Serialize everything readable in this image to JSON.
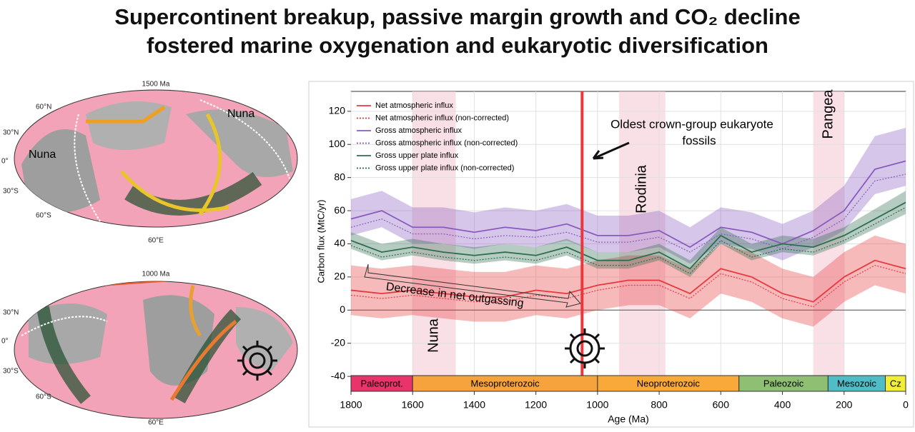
{
  "title_lines": [
    "Supercontinent breakup, passive margin growth and CO₂ decline",
    "fostered marine oxygenation and eukaryotic diversification"
  ],
  "maps": [
    {
      "title": "1500 Ma",
      "lat_labels": [
        "60°N",
        "30°N",
        "0°",
        "30°S",
        "60°S"
      ],
      "lon_label": "60°E",
      "regions": [
        "Nuna",
        "Nuna"
      ]
    },
    {
      "title": "1000 Ma",
      "lat_labels": [
        "30°N",
        "0°",
        "30°S",
        "60°S"
      ],
      "lon_label": "60°E"
    }
  ],
  "chart_data": {
    "type": "line",
    "x_label": "Age (Ma)",
    "y_label": "Carbon flux (MtC/yr)",
    "x": [
      1800,
      1700,
      1600,
      1500,
      1400,
      1300,
      1200,
      1100,
      1000,
      900,
      800,
      700,
      600,
      500,
      400,
      300,
      200,
      100,
      0
    ],
    "xlim": [
      1800,
      0
    ],
    "ylim": [
      -49,
      132
    ],
    "xticks": [
      1800,
      1600,
      1400,
      1200,
      1000,
      800,
      600,
      400,
      200,
      0
    ],
    "yticks": [
      -40,
      -20,
      0,
      20,
      40,
      60,
      80,
      100,
      120
    ],
    "grid": true,
    "legend": "upper left",
    "series": [
      {
        "name": "Net atmospheric influx",
        "color": "#e8383d",
        "dashed": false,
        "values": [
          12,
          10,
          12,
          10,
          8,
          8,
          12,
          10,
          15,
          18,
          18,
          10,
          25,
          20,
          10,
          5,
          20,
          30,
          25
        ],
        "lower": [
          -3,
          -5,
          -3,
          -5,
          -7,
          -7,
          -3,
          -5,
          0,
          3,
          3,
          -5,
          10,
          5,
          -5,
          -10,
          5,
          15,
          10
        ],
        "upper": [
          27,
          25,
          27,
          25,
          23,
          23,
          27,
          25,
          30,
          33,
          33,
          25,
          40,
          35,
          25,
          20,
          35,
          45,
          40
        ]
      },
      {
        "name": "Net atmospheric influx (non-corrected)",
        "color": "#e8383d",
        "dashed": true,
        "values": [
          9,
          7,
          9,
          7,
          5,
          5,
          9,
          7,
          12,
          15,
          15,
          7,
          22,
          17,
          7,
          2,
          17,
          27,
          22
        ]
      },
      {
        "name": "Gross atmospheric influx",
        "color": "#8a5bbf",
        "dashed": false,
        "values": [
          55,
          60,
          50,
          50,
          47,
          50,
          48,
          52,
          45,
          45,
          48,
          38,
          50,
          47,
          40,
          48,
          60,
          85,
          90
        ],
        "lower": [
          45,
          50,
          40,
          40,
          37,
          40,
          38,
          42,
          35,
          35,
          38,
          28,
          40,
          37,
          30,
          38,
          48,
          70,
          75
        ],
        "upper": [
          67,
          72,
          62,
          62,
          59,
          62,
          60,
          64,
          57,
          57,
          60,
          50,
          62,
          59,
          52,
          60,
          75,
          105,
          110
        ]
      },
      {
        "name": "Gross atmospheric influx (non-corrected)",
        "color": "#8a5bbf",
        "dashed": true,
        "values": [
          50,
          55,
          46,
          46,
          43,
          45,
          44,
          47,
          41,
          41,
          44,
          35,
          46,
          43,
          37,
          44,
          55,
          78,
          82
        ]
      },
      {
        "name": "Gross upper plate influx",
        "color": "#2e6e4f",
        "dashed": false,
        "values": [
          42,
          35,
          38,
          35,
          33,
          35,
          33,
          38,
          30,
          30,
          35,
          25,
          45,
          35,
          40,
          38,
          45,
          55,
          65
        ],
        "lower": [
          37,
          30,
          33,
          30,
          28,
          30,
          28,
          33,
          25,
          25,
          30,
          20,
          40,
          30,
          35,
          33,
          40,
          49,
          58
        ],
        "upper": [
          47,
          40,
          43,
          40,
          38,
          40,
          38,
          43,
          35,
          35,
          40,
          30,
          50,
          40,
          45,
          43,
          50,
          61,
          72
        ]
      },
      {
        "name": "Gross upper plate influx (non-corrected)",
        "color": "#2e6e4f",
        "dashed": true,
        "values": [
          39,
          32,
          35,
          32,
          30,
          32,
          30,
          35,
          27,
          27,
          32,
          22,
          42,
          32,
          37,
          35,
          42,
          52,
          62
        ]
      }
    ],
    "spans": [
      {
        "label": "Nuna",
        "start": 1600,
        "end": 1460
      },
      {
        "label": "Rodinia",
        "start": 930,
        "end": 780
      },
      {
        "label": "Pangea",
        "start": 300,
        "end": 200
      }
    ],
    "marker_line": 1050,
    "annotations": [
      "Oldest crown-group eukaryote",
      "fossils",
      "Decrease in net outgassing"
    ],
    "eras": [
      {
        "label": "Paleoprot.",
        "start": 1800,
        "end": 1600,
        "color": "#e8336b"
      },
      {
        "label": "Mesoproterozoic",
        "start": 1600,
        "end": 1000,
        "color": "#f6a33e"
      },
      {
        "label": "Neoproterozoic",
        "start": 1000,
        "end": 541,
        "color": "#f8a93a"
      },
      {
        "label": "Paleozoic",
        "start": 541,
        "end": 252,
        "color": "#8fbf72"
      },
      {
        "label": "Mesozoic",
        "start": 252,
        "end": 66,
        "color": "#4fbcc6"
      },
      {
        "label": "Cz",
        "start": 66,
        "end": 0,
        "color": "#f0ee36"
      }
    ]
  }
}
